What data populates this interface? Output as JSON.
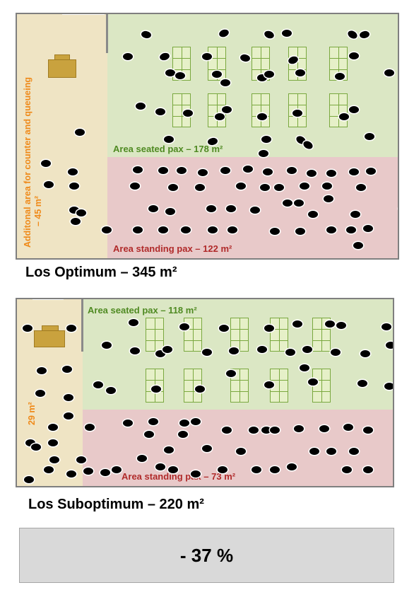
{
  "layout1": {
    "counter_area_label_line1": "Additonal area for counter and queueing",
    "counter_area_label_line2": "– 45 m²",
    "seated_label": "Area seated pax – 178 m²",
    "standing_label": "Area standing pax – 122 m²",
    "caption": "Los Optimum  – 345 m²"
  },
  "layout2": {
    "counter_area_label": "29 m²",
    "seated_label": "Area seated pax – 118 m²",
    "standing_label": "Area standing pax – 73 m²",
    "caption": "Los Suboptimum  – 220 m²"
  },
  "result": {
    "label": "- 37 %"
  },
  "colors": {
    "counter_area": "#efe4c4",
    "seated_area": "#dbe7c4",
    "standing_area": "#e8c9c9",
    "seated_text": "#4f8a22",
    "standing_text": "#b02a2a",
    "counter_text": "#ef8a1a",
    "counter": "#c9a23e",
    "table": "#e6f0c8",
    "person": "#000000"
  },
  "icons": [
    "counter-desk-icon",
    "table-icon",
    "passenger-icon"
  ]
}
